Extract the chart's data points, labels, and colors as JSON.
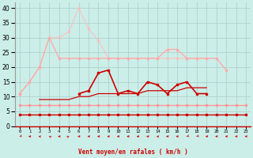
{
  "xlabel": "Vent moyen/en rafales ( km/h )",
  "x_labels": [
    "0",
    "1",
    "2",
    "3",
    "4",
    "5",
    "6",
    "7",
    "8",
    "9",
    "10",
    "11",
    "12",
    "13",
    "14",
    "15",
    "16",
    "17",
    "18",
    "19",
    "20",
    "21",
    "22",
    "23"
  ],
  "ylim": [
    0,
    42
  ],
  "yticks": [
    0,
    5,
    10,
    15,
    20,
    25,
    30,
    35,
    40
  ],
  "background_color": "#cceee8",
  "grid_color": "#aacccc",
  "series": [
    {
      "y": [
        4,
        4,
        4,
        4,
        4,
        4,
        4,
        4,
        4,
        4,
        4,
        4,
        4,
        4,
        4,
        4,
        4,
        4,
        4,
        4,
        4,
        4,
        4,
        4
      ],
      "color": "#cc0000",
      "lw": 1.0,
      "marker": "s",
      "ms": 1.8,
      "alpha": 1.0
    },
    {
      "y": [
        7,
        7,
        7,
        7,
        7,
        7,
        7,
        7,
        7,
        7,
        7,
        7,
        7,
        7,
        7,
        7,
        7,
        7,
        7,
        7,
        7,
        7,
        7,
        7
      ],
      "color": "#ff9999",
      "lw": 1.0,
      "marker": "s",
      "ms": 1.8,
      "alpha": 1.0
    },
    {
      "y": [
        11,
        null,
        null,
        null,
        null,
        null,
        null,
        null,
        null,
        null,
        null,
        null,
        null,
        null,
        null,
        null,
        null,
        null,
        null,
        null,
        null,
        null,
        null,
        null
      ],
      "color": "#ffaaaa",
      "lw": 1.0,
      "marker": "s",
      "ms": 1.8,
      "alpha": 1.0
    },
    {
      "y": [
        11,
        null,
        9,
        9,
        9,
        9,
        10,
        10,
        11,
        11,
        11,
        11,
        11,
        12,
        12,
        12,
        12,
        13,
        13,
        13,
        null,
        null,
        null,
        null
      ],
      "color": "#cc0000",
      "lw": 0.9,
      "marker": null,
      "ms": 0,
      "alpha": 1.0
    },
    {
      "y": [
        null,
        null,
        null,
        null,
        null,
        null,
        11,
        12,
        18,
        19,
        11,
        12,
        11,
        15,
        14,
        11,
        14,
        15,
        11,
        11,
        null,
        null,
        null,
        null
      ],
      "color": "#cc0000",
      "lw": 1.2,
      "marker": "s",
      "ms": 2.0,
      "alpha": 1.0
    },
    {
      "y": [
        11,
        15,
        20,
        30,
        30,
        32,
        40,
        33,
        29,
        23,
        23,
        23,
        23,
        23,
        23,
        23,
        23,
        23,
        23,
        23,
        null,
        null,
        null,
        null
      ],
      "color": "#ffbbbb",
      "lw": 1.0,
      "marker": "s",
      "ms": 1.8,
      "alpha": 0.7
    },
    {
      "y": [
        11,
        15,
        20,
        30,
        23,
        23,
        23,
        23,
        23,
        23,
        23,
        23,
        23,
        23,
        23,
        26,
        26,
        23,
        23,
        23,
        23,
        19,
        null,
        null
      ],
      "color": "#ffaaaa",
      "lw": 1.0,
      "marker": "s",
      "ms": 1.8,
      "alpha": 1.0
    }
  ],
  "wind_arrows": [
    [
      0,
      225
    ],
    [
      1,
      270
    ],
    [
      2,
      292
    ],
    [
      3,
      315
    ],
    [
      4,
      270
    ],
    [
      5,
      45
    ],
    [
      6,
      270
    ],
    [
      7,
      270
    ],
    [
      8,
      270
    ],
    [
      9,
      270
    ],
    [
      10,
      270
    ],
    [
      11,
      270
    ],
    [
      12,
      270
    ],
    [
      13,
      270
    ],
    [
      14,
      292
    ],
    [
      15,
      270
    ],
    [
      16,
      270
    ],
    [
      17,
      225
    ],
    [
      18,
      225
    ],
    [
      19,
      270
    ],
    [
      20,
      270
    ],
    [
      21,
      270
    ],
    [
      22,
      270
    ],
    [
      23,
      270
    ]
  ]
}
